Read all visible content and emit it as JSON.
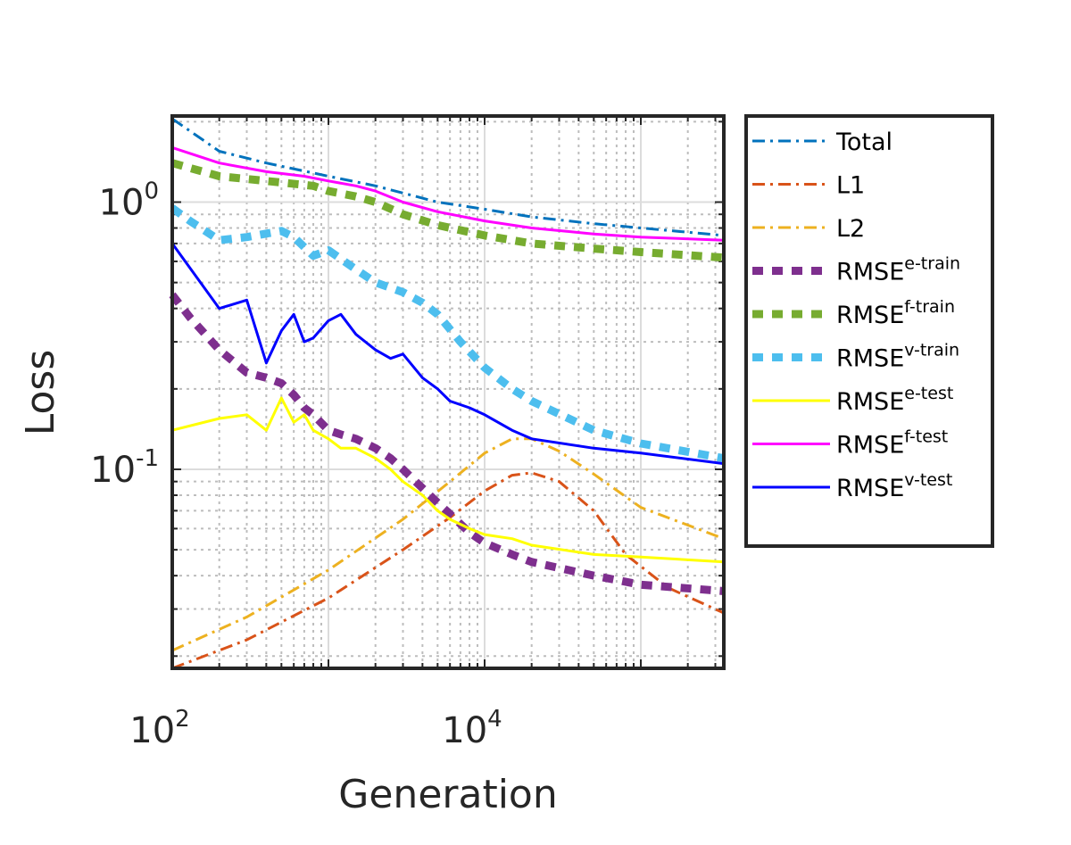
{
  "chart_data": {
    "type": "line",
    "title": "",
    "xlabel": "Generation",
    "ylabel": "Loss",
    "x_scale": "log",
    "y_scale": "log",
    "xlim": [
      100,
      340000
    ],
    "ylim": [
      0.018,
      2.1
    ],
    "x_ticks": [
      {
        "value": 100,
        "base": "10",
        "exp": "2"
      },
      {
        "value": 10000,
        "base": "10",
        "exp": "4"
      }
    ],
    "y_ticks": [
      {
        "value": 1,
        "base": "10",
        "exp": "0"
      },
      {
        "value": 0.1,
        "base": "10",
        "exp": "-1"
      }
    ],
    "grid": true,
    "minor_grid": true,
    "legend_position": "outside-right",
    "series": [
      {
        "key": "total",
        "name": "Total",
        "sup": "",
        "color": "#0072BD",
        "style": "dashdot",
        "width": 3,
        "x": [
          100,
          200,
          400,
          1000,
          2000,
          5000,
          10000,
          20000,
          50000,
          100000,
          340000
        ],
        "y": [
          2.05,
          1.55,
          1.4,
          1.25,
          1.15,
          1.0,
          0.94,
          0.88,
          0.83,
          0.8,
          0.75
        ]
      },
      {
        "key": "l1",
        "name": "L1",
        "sup": "",
        "color": "#D95319",
        "style": "dashdot",
        "width": 3,
        "x": [
          100,
          300,
          1000,
          3000,
          6000,
          10000,
          15000,
          20000,
          30000,
          50000,
          80000,
          150000,
          340000
        ],
        "y": [
          0.018,
          0.023,
          0.033,
          0.05,
          0.066,
          0.083,
          0.095,
          0.097,
          0.09,
          0.07,
          0.048,
          0.036,
          0.029
        ]
      },
      {
        "key": "l2",
        "name": "L2",
        "sup": "",
        "color": "#EDB120",
        "style": "dashdot",
        "width": 3,
        "x": [
          100,
          300,
          1000,
          3000,
          6000,
          10000,
          15000,
          20000,
          30000,
          50000,
          100000,
          340000
        ],
        "y": [
          0.021,
          0.028,
          0.042,
          0.065,
          0.09,
          0.115,
          0.13,
          0.13,
          0.117,
          0.096,
          0.072,
          0.055
        ]
      },
      {
        "key": "e_train",
        "name": "RMSE",
        "sup": "e-train",
        "color": "#7E2F8E",
        "style": "dotted",
        "width": 9,
        "x": [
          100,
          130,
          200,
          300,
          400,
          500,
          600,
          700,
          800,
          1000,
          1200,
          1500,
          2000,
          2500,
          3000,
          4000,
          5000,
          6000,
          8000,
          10000,
          15000,
          20000,
          50000,
          100000,
          340000
        ],
        "y": [
          0.45,
          0.37,
          0.28,
          0.23,
          0.22,
          0.21,
          0.19,
          0.17,
          0.16,
          0.14,
          0.135,
          0.13,
          0.12,
          0.11,
          0.1,
          0.085,
          0.075,
          0.068,
          0.058,
          0.053,
          0.048,
          0.045,
          0.04,
          0.037,
          0.035
        ]
      },
      {
        "key": "f_train",
        "name": "RMSE",
        "sup": "f-train",
        "color": "#77AC30",
        "style": "dotted",
        "width": 9,
        "x": [
          100,
          200,
          400,
          800,
          1000,
          1500,
          2000,
          3000,
          5000,
          10000,
          20000,
          50000,
          100000,
          340000
        ],
        "y": [
          1.4,
          1.25,
          1.2,
          1.15,
          1.1,
          1.05,
          1.0,
          0.9,
          0.82,
          0.75,
          0.7,
          0.67,
          0.65,
          0.62
        ]
      },
      {
        "key": "v_train",
        "name": "RMSE",
        "sup": "v-train",
        "color": "#4DBEEE",
        "style": "dotted",
        "width": 9,
        "x": [
          100,
          130,
          200,
          300,
          500,
          600,
          800,
          1000,
          1500,
          2000,
          3000,
          4000,
          5000,
          7000,
          10000,
          15000,
          20000,
          50000,
          100000,
          340000
        ],
        "y": [
          0.95,
          0.85,
          0.72,
          0.74,
          0.78,
          0.74,
          0.63,
          0.66,
          0.56,
          0.5,
          0.46,
          0.42,
          0.38,
          0.3,
          0.24,
          0.2,
          0.18,
          0.14,
          0.125,
          0.11
        ]
      },
      {
        "key": "e_test",
        "name": "RMSE",
        "sup": "e-test",
        "color": "#FFFF00",
        "style": "solid",
        "width": 3,
        "x": [
          100,
          200,
          300,
          400,
          500,
          600,
          700,
          800,
          1000,
          1200,
          1500,
          2000,
          2500,
          3000,
          4000,
          5000,
          6000,
          8000,
          10000,
          15000,
          20000,
          50000,
          100000,
          340000
        ],
        "y": [
          0.14,
          0.155,
          0.16,
          0.14,
          0.185,
          0.15,
          0.16,
          0.14,
          0.13,
          0.12,
          0.12,
          0.11,
          0.1,
          0.09,
          0.08,
          0.07,
          0.065,
          0.06,
          0.057,
          0.055,
          0.052,
          0.048,
          0.047,
          0.045
        ]
      },
      {
        "key": "f_test",
        "name": "RMSE",
        "sup": "f-test",
        "color": "#FF00FF",
        "style": "solid",
        "width": 3,
        "x": [
          100,
          200,
          400,
          700,
          1000,
          1500,
          2000,
          3000,
          5000,
          10000,
          20000,
          50000,
          100000,
          340000
        ],
        "y": [
          1.6,
          1.4,
          1.3,
          1.25,
          1.2,
          1.15,
          1.1,
          1.0,
          0.92,
          0.85,
          0.8,
          0.76,
          0.74,
          0.72
        ]
      },
      {
        "key": "v_test",
        "name": "RMSE",
        "sup": "v-test",
        "color": "#0000FF",
        "style": "solid",
        "width": 3,
        "x": [
          100,
          200,
          300,
          400,
          500,
          600,
          700,
          800,
          1000,
          1200,
          1500,
          2000,
          2500,
          3000,
          4000,
          5000,
          6000,
          8000,
          10000,
          15000,
          20000,
          50000,
          100000,
          340000
        ],
        "y": [
          0.7,
          0.4,
          0.43,
          0.25,
          0.33,
          0.38,
          0.3,
          0.31,
          0.36,
          0.38,
          0.32,
          0.28,
          0.26,
          0.27,
          0.22,
          0.2,
          0.18,
          0.17,
          0.16,
          0.14,
          0.13,
          0.12,
          0.115,
          0.105
        ]
      }
    ]
  }
}
